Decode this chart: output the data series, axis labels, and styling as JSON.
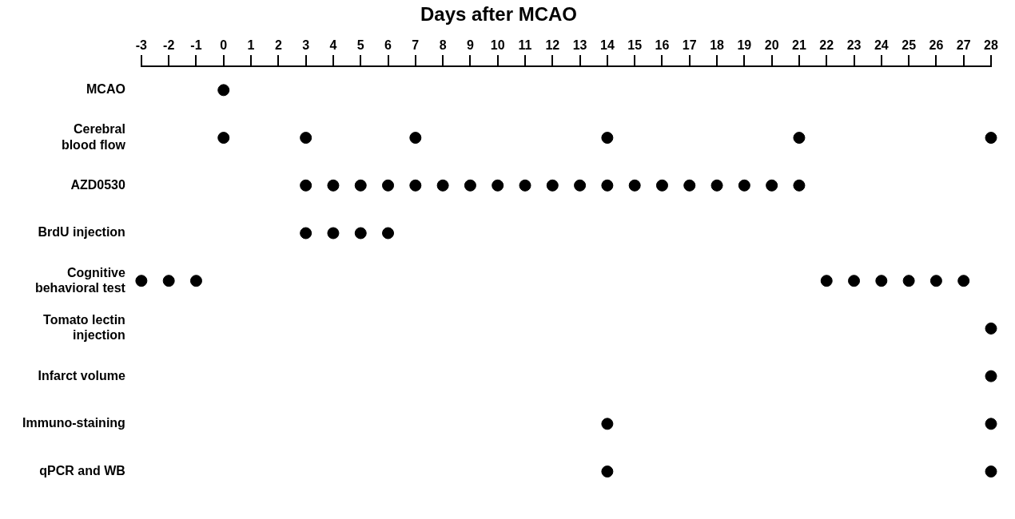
{
  "chart_data": {
    "type": "scatter",
    "title": "Days after MCAO",
    "orientation": "horizontal",
    "categories": [
      "MCAO",
      "Cerebral\nblood flow",
      "AZD0530",
      "BrdU injection",
      "Cognitive\nbehavioral test",
      "Tomato lectin\ninjection",
      "Infarct volume",
      "Immuno-staining",
      "qPCR and WB"
    ],
    "series": [
      {
        "color": "#000000",
        "x": [
          "MCAO",
          "Cerebral\nblood flow",
          "Cerebral\nblood flow",
          "Cerebral\nblood flow",
          "Cerebral\nblood flow",
          "Cerebral\nblood flow",
          "Cerebral\nblood flow",
          "AZD0530",
          "AZD0530",
          "AZD0530",
          "AZD0530",
          "AZD0530",
          "AZD0530",
          "AZD0530",
          "AZD0530",
          "AZD0530",
          "AZD0530",
          "AZD0530",
          "AZD0530",
          "AZD0530",
          "AZD0530",
          "AZD0530",
          "AZD0530",
          "AZD0530",
          "AZD0530",
          "AZD0530",
          "BrdU injection",
          "BrdU injection",
          "BrdU injection",
          "BrdU injection",
          "Cognitive\nbehavioral test",
          "Cognitive\nbehavioral test",
          "Cognitive\nbehavioral test",
          "Cognitive\nbehavioral test",
          "Cognitive\nbehavioral test",
          "Cognitive\nbehavioral test",
          "Cognitive\nbehavioral test",
          "Cognitive\nbehavioral test",
          "Cognitive\nbehavioral test",
          "Tomato lectin\ninjection",
          "Infarct volume",
          "Immuno-staining",
          "Immuno-staining",
          "qPCR and WB",
          "qPCR and WB"
        ],
        "values": [
          0,
          0,
          3,
          7,
          14,
          21,
          28,
          3,
          4,
          5,
          6,
          7,
          8,
          9,
          10,
          11,
          12,
          13,
          14,
          15,
          16,
          17,
          18,
          19,
          20,
          21,
          3,
          4,
          5,
          6,
          -3,
          -2,
          -1,
          22,
          23,
          24,
          25,
          26,
          27,
          28,
          28,
          14,
          28,
          14,
          28
        ]
      }
    ],
    "xlim": [
      -3,
      28
    ],
    "xticks": [
      -3,
      -2,
      -1,
      0,
      1,
      2,
      3,
      4,
      5,
      6,
      7,
      8,
      9,
      10,
      11,
      12,
      13,
      14,
      15,
      16,
      17,
      18,
      19,
      20,
      21,
      22,
      23,
      24,
      25,
      26,
      27,
      28
    ],
    "marker": "circle",
    "grid": false,
    "legend": false
  }
}
